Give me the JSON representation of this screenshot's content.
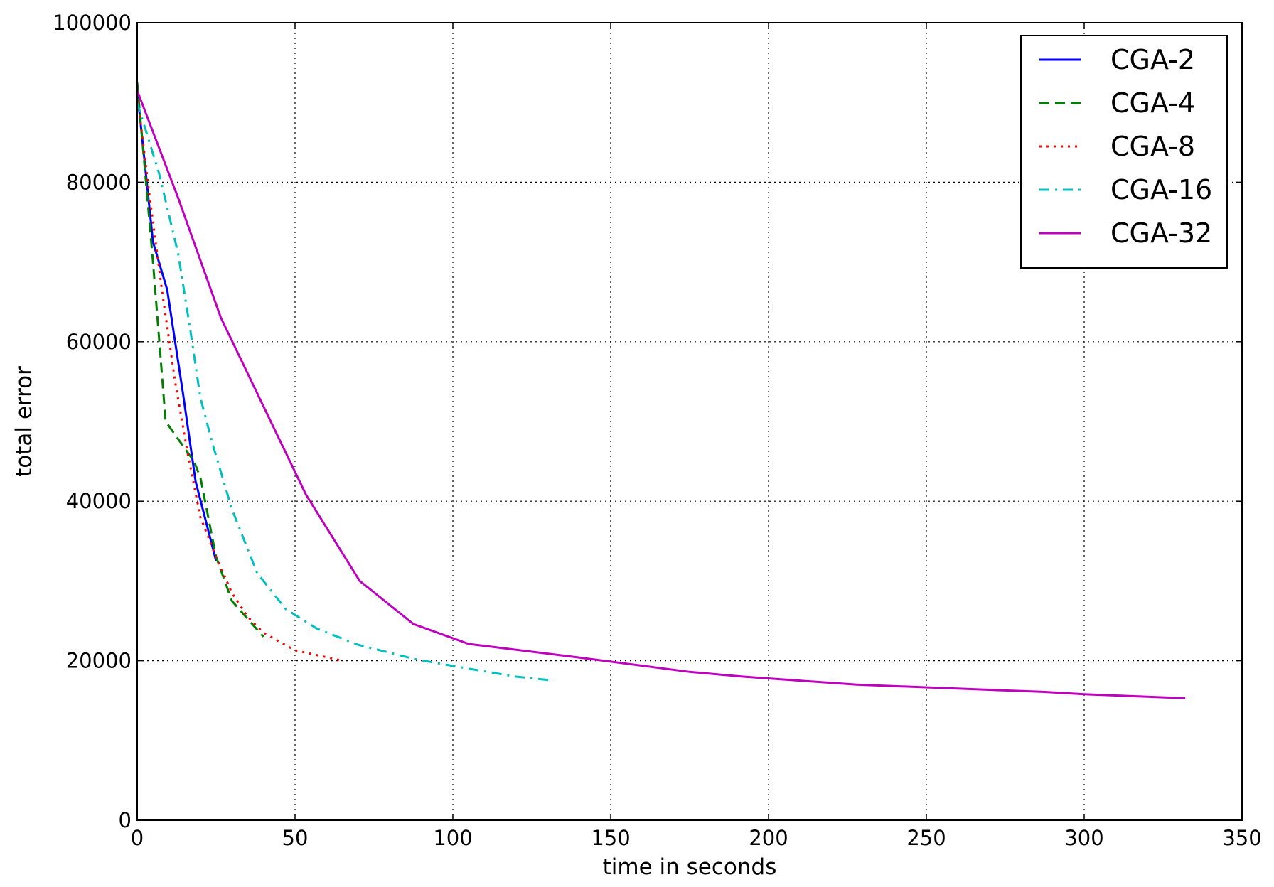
{
  "chart_data": {
    "type": "line",
    "title": "",
    "xlabel": "time in seconds",
    "ylabel": "total error",
    "xlim": [
      0,
      350
    ],
    "ylim": [
      0,
      100000
    ],
    "xticks": [
      0,
      50,
      100,
      150,
      200,
      250,
      300,
      350
    ],
    "yticks": [
      0,
      20000,
      40000,
      60000,
      80000,
      100000
    ],
    "xtick_labels": [
      "0",
      "50",
      "100",
      "150",
      "200",
      "250",
      "300",
      "350"
    ],
    "ytick_labels": [
      "0",
      "20000",
      "40000",
      "60000",
      "80000",
      "100000"
    ],
    "grid": true,
    "grid_style": "dotted",
    "legend_position": "top-right",
    "series": [
      {
        "name": "CGA-2",
        "color": "#0000ff",
        "style": "solid",
        "x": [
          0,
          5,
          9.5,
          14.5,
          18.5,
          25
        ],
        "y": [
          91500,
          72500,
          66500,
          53500,
          42500,
          32500
        ]
      },
      {
        "name": "CGA-4",
        "color": "#008000",
        "style": "dashed",
        "x": [
          0,
          5,
          9,
          18,
          20,
          25,
          30,
          40
        ],
        "y": [
          92500,
          70000,
          50000,
          45000,
          43000,
          33000,
          27500,
          23000
        ]
      },
      {
        "name": "CGA-8",
        "color": "#ff0000",
        "style": "dotted",
        "x": [
          0,
          4,
          8,
          12,
          16,
          20,
          25,
          30,
          35,
          40,
          50,
          65
        ],
        "y": [
          91000,
          78000,
          66000,
          55000,
          46000,
          38000,
          33000,
          28500,
          25500,
          23500,
          21300,
          20000
        ]
      },
      {
        "name": "CGA-16",
        "color": "#00bfbf",
        "style": "dashdot",
        "x": [
          0,
          7,
          13,
          17,
          20,
          24,
          30,
          38,
          47,
          57,
          70,
          88,
          105,
          120,
          132
        ],
        "y": [
          90000,
          81000,
          71000,
          61000,
          53000,
          47000,
          39000,
          31000,
          26500,
          24000,
          22000,
          20200,
          19000,
          18000,
          17500
        ]
      },
      {
        "name": "CGA-32",
        "color": "#bf00bf",
        "style": "solid",
        "x": [
          0,
          13,
          26.5,
          53.5,
          70.5,
          87.5,
          105,
          140,
          175,
          192,
          228,
          287,
          300,
          332
        ],
        "y": [
          91500,
          78000,
          63000,
          40800,
          30000,
          24600,
          22100,
          20400,
          18600,
          18000,
          17000,
          16100,
          15800,
          15300
        ]
      }
    ]
  }
}
